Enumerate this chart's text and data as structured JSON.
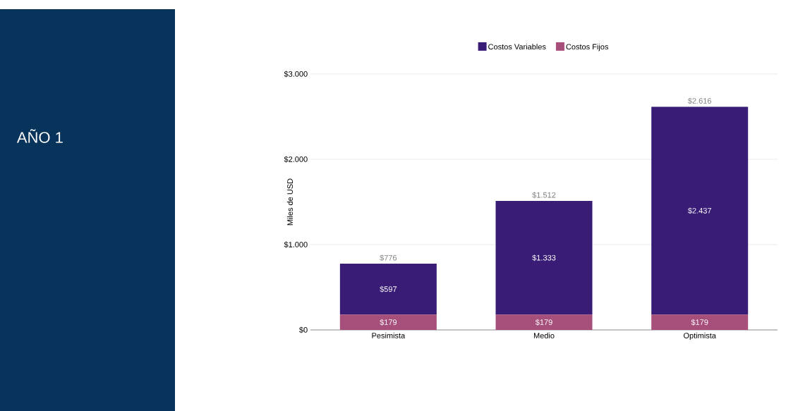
{
  "chart_data": {
    "type": "bar",
    "stacked": true,
    "title": "AÑO 1",
    "ylabel": "Miles de USD",
    "categories": [
      "Pesimista",
      "Medio",
      "Optimista"
    ],
    "series": [
      {
        "name": "Costos Fijos",
        "color": "#a64f7b",
        "values": [
          179,
          179,
          179
        ],
        "value_labels": [
          "$179",
          "$179",
          "$179"
        ]
      },
      {
        "name": "Costos Variables",
        "color": "#381c76",
        "values": [
          597,
          1333,
          2437
        ],
        "value_labels": [
          "$597",
          "$1.333",
          "$2.437"
        ]
      }
    ],
    "totals": [
      "$776",
      "$1.512",
      "$2.616"
    ],
    "ylim": [
      0,
      3000
    ],
    "yticks": [
      {
        "value": 0,
        "label": "$0"
      },
      {
        "value": 1000,
        "label": "$1.000"
      },
      {
        "value": 2000,
        "label": "$2.000"
      },
      {
        "value": 3000,
        "label": "$3.000"
      }
    ],
    "grid": "y",
    "legend": "top"
  }
}
